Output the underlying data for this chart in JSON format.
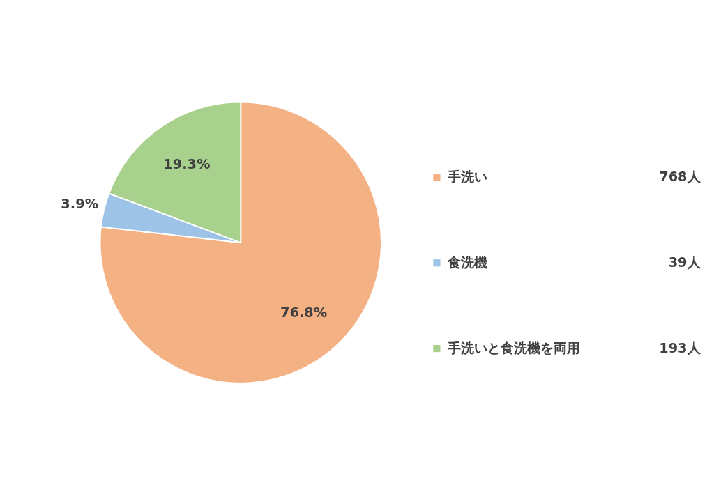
{
  "chart_data": {
    "type": "pie",
    "categories": [
      "手洗い",
      "食洗機",
      "手洗いと食洗機を両用"
    ],
    "values": [
      76.8,
      3.9,
      19.3
    ],
    "colors": [
      "#f4b183",
      "#9dc3e6",
      "#a9d18e"
    ],
    "value_labels": [
      "76.8%",
      "3.9%",
      "19.3%"
    ],
    "annotations": [
      "768人",
      "39人",
      "193人"
    ],
    "legend": "right"
  }
}
